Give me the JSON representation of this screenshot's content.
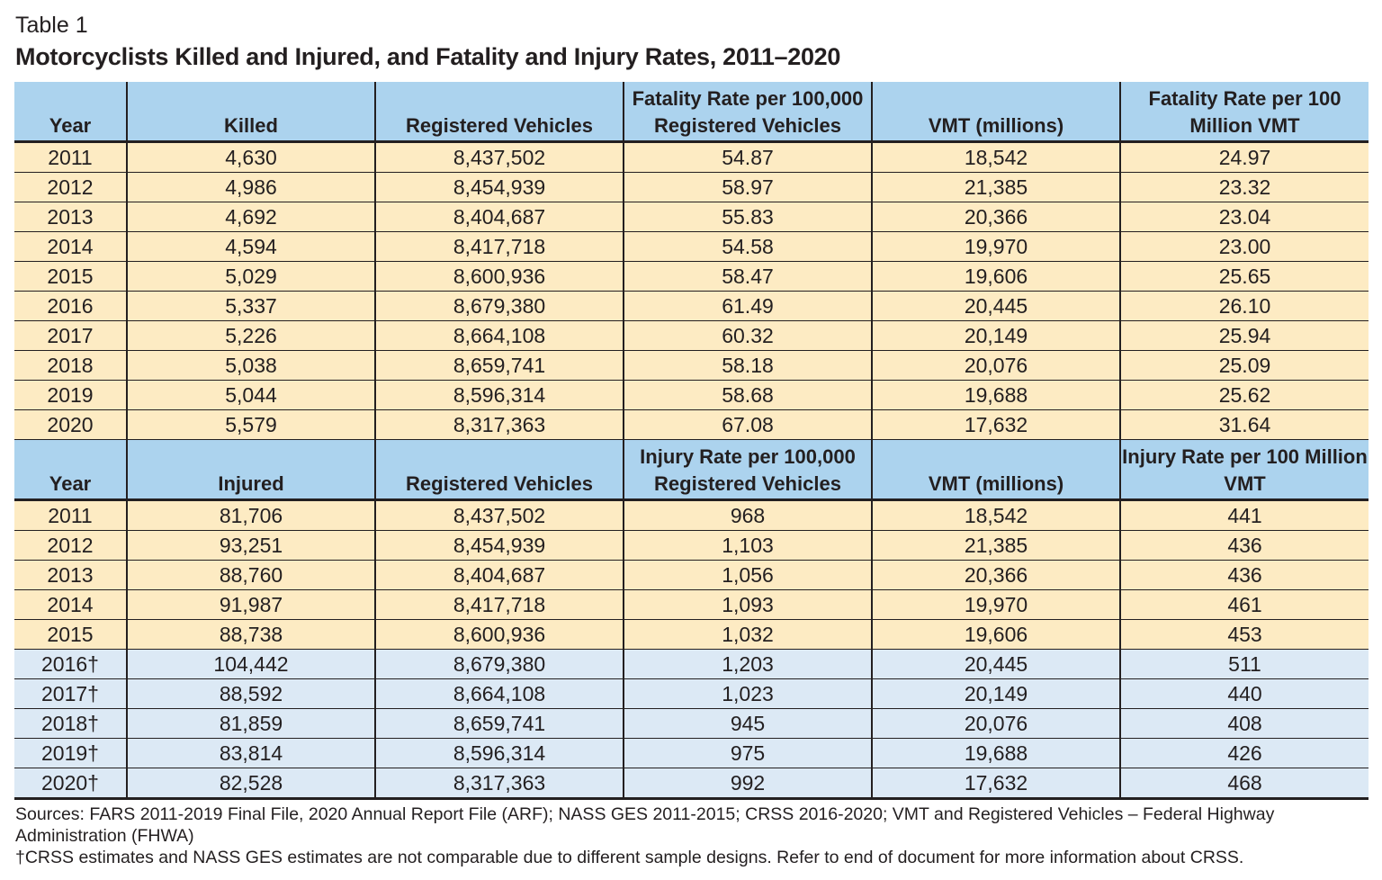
{
  "table_label": "Table 1",
  "title": "Motorcyclists Killed and Injured, and Fatality and Injury Rates, 2011–2020",
  "colors": {
    "header": "#acd3ee",
    "gesRows": "#fdebc3",
    "crssRows": "#dce9f5"
  },
  "fatal_section": {
    "headers": [
      "Year",
      "Killed",
      "Registered Vehicles",
      "Fatality Rate per 100,000 Registered Vehicles",
      "VMT (millions)",
      "Fatality Rate per 100 Million VMT"
    ],
    "rows": [
      [
        "2011",
        "4,630",
        "8,437,502",
        "54.87",
        "18,542",
        "24.97"
      ],
      [
        "2012",
        "4,986",
        "8,454,939",
        "58.97",
        "21,385",
        "23.32"
      ],
      [
        "2013",
        "4,692",
        "8,404,687",
        "55.83",
        "20,366",
        "23.04"
      ],
      [
        "2014",
        "4,594",
        "8,417,718",
        "54.58",
        "19,970",
        "23.00"
      ],
      [
        "2015",
        "5,029",
        "8,600,936",
        "58.47",
        "19,606",
        "25.65"
      ],
      [
        "2016",
        "5,337",
        "8,679,380",
        "61.49",
        "20,445",
        "26.10"
      ],
      [
        "2017",
        "5,226",
        "8,664,108",
        "60.32",
        "20,149",
        "25.94"
      ],
      [
        "2018",
        "5,038",
        "8,659,741",
        "58.18",
        "20,076",
        "25.09"
      ],
      [
        "2019",
        "5,044",
        "8,596,314",
        "58.68",
        "19,688",
        "25.62"
      ],
      [
        "2020",
        "5,579",
        "8,317,363",
        "67.08",
        "17,632",
        "31.64"
      ]
    ]
  },
  "injury_section": {
    "headers": [
      "Year",
      "Injured",
      "Registered Vehicles",
      "Injury Rate per 100,000 Registered Vehicles",
      "VMT (millions)",
      "Injury Rate per 100 Million VMT"
    ],
    "rows": [
      [
        "2011",
        "81,706",
        "8,437,502",
        "968",
        "18,542",
        "441"
      ],
      [
        "2012",
        "93,251",
        "8,454,939",
        "1,103",
        "21,385",
        "436"
      ],
      [
        "2013",
        "88,760",
        "8,404,687",
        "1,056",
        "20,366",
        "436"
      ],
      [
        "2014",
        "91,987",
        "8,417,718",
        "1,093",
        "19,970",
        "461"
      ],
      [
        "2015",
        "88,738",
        "8,600,936",
        "1,032",
        "19,606",
        "453"
      ],
      [
        "2016†",
        "104,442",
        "8,679,380",
        "1,203",
        "20,445",
        "511"
      ],
      [
        "2017†",
        "88,592",
        "8,664,108",
        "1,023",
        "20,149",
        "440"
      ],
      [
        "2018†",
        "81,859",
        "8,659,741",
        "945",
        "20,076",
        "408"
      ],
      [
        "2019†",
        "83,814",
        "8,596,314",
        "975",
        "19,688",
        "426"
      ],
      [
        "2020†",
        "82,528",
        "8,317,363",
        "992",
        "17,632",
        "468"
      ]
    ]
  },
  "sources": "Sources: FARS 2011-2019 Final File, 2020 Annual Report File (ARF); NASS GES 2011-2015; CRSS 2016-2020; VMT and Registered Vehicles – Federal Highway Administration (FHWA)",
  "footnote": "†CRSS estimates and NASS GES estimates are not comparable due to different sample designs. Refer to end of document for more information about CRSS."
}
